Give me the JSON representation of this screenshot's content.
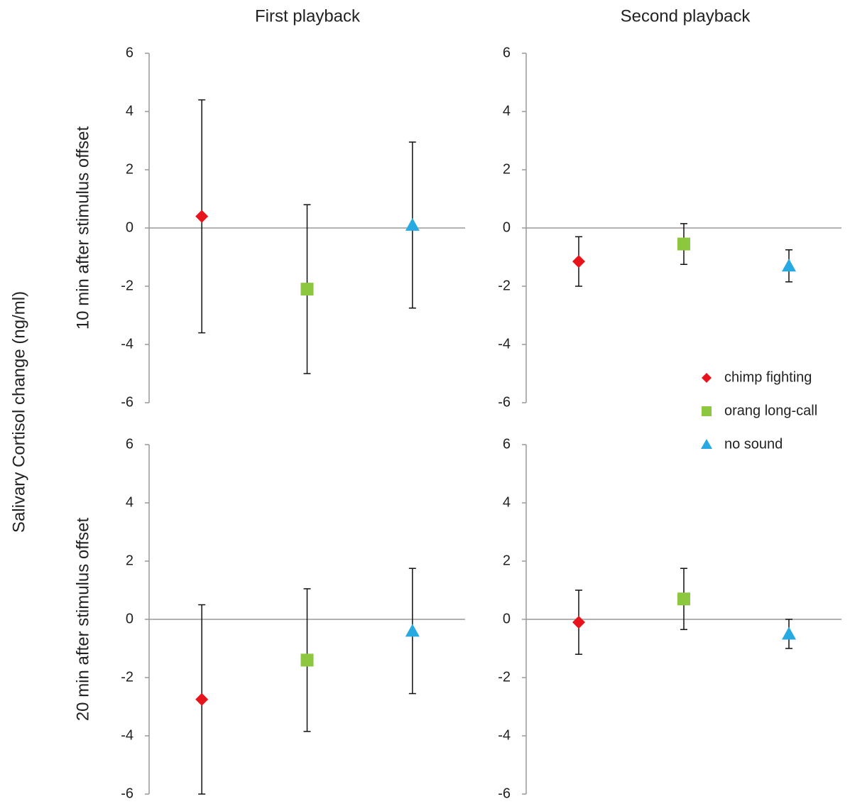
{
  "column_titles": [
    "First playback",
    "Second playback"
  ],
  "row_titles": [
    "10 min after stimulus offset",
    "20 min after stimulus offset"
  ],
  "ylabel": "Salivary Cortisol change (ng/ml)",
  "chart_data": [
    {
      "type": "errorbar",
      "ylim": [
        -6,
        6
      ],
      "yticks": [
        -6,
        -4,
        -2,
        0,
        2,
        4,
        6
      ],
      "zero_line": true,
      "series": [
        {
          "name": "chimp fighting",
          "color": "#e8141b",
          "marker": "diamond",
          "values": [
            0.4
          ],
          "errors": [
            4.0
          ]
        },
        {
          "name": "orang long-call",
          "color": "#8dc63f",
          "marker": "square",
          "values": [
            -2.1
          ],
          "errors": [
            2.9
          ]
        },
        {
          "name": "no sound",
          "color": "#27a9e1",
          "marker": "triangle",
          "values": [
            0.1
          ],
          "errors": [
            2.85
          ]
        }
      ]
    },
    {
      "type": "errorbar",
      "ylim": [
        -6,
        6
      ],
      "yticks": [
        -6,
        -4,
        -2,
        0,
        2,
        4,
        6
      ],
      "zero_line": true,
      "legend": true,
      "series": [
        {
          "name": "chimp fighting",
          "color": "#e8141b",
          "marker": "diamond",
          "values": [
            -1.15
          ],
          "errors": [
            0.85
          ]
        },
        {
          "name": "orang long-call",
          "color": "#8dc63f",
          "marker": "square",
          "values": [
            -0.55
          ],
          "errors": [
            0.7
          ]
        },
        {
          "name": "no sound",
          "color": "#27a9e1",
          "marker": "triangle",
          "values": [
            -1.3
          ],
          "errors": [
            0.55
          ]
        }
      ]
    },
    {
      "type": "errorbar",
      "ylim": [
        -6,
        6
      ],
      "yticks": [
        -6,
        -4,
        -2,
        0,
        2,
        4,
        6
      ],
      "zero_line": true,
      "series": [
        {
          "name": "chimp fighting",
          "color": "#e8141b",
          "marker": "diamond",
          "values": [
            -2.75
          ],
          "errors": [
            3.25
          ]
        },
        {
          "name": "orang long-call",
          "color": "#8dc63f",
          "marker": "square",
          "values": [
            -1.4
          ],
          "errors": [
            2.45
          ]
        },
        {
          "name": "no sound",
          "color": "#27a9e1",
          "marker": "triangle",
          "values": [
            -0.4
          ],
          "errors": [
            2.15
          ]
        }
      ]
    },
    {
      "type": "errorbar",
      "ylim": [
        -6,
        6
      ],
      "yticks": [
        -6,
        -4,
        -2,
        0,
        2,
        4,
        6
      ],
      "zero_line": true,
      "series": [
        {
          "name": "chimp fighting",
          "color": "#e8141b",
          "marker": "diamond",
          "values": [
            -0.1
          ],
          "errors": [
            1.1
          ]
        },
        {
          "name": "orang long-call",
          "color": "#8dc63f",
          "marker": "square",
          "values": [
            0.7
          ],
          "errors": [
            1.05
          ]
        },
        {
          "name": "no sound",
          "color": "#27a9e1",
          "marker": "triangle",
          "values": [
            -0.5
          ],
          "errors": [
            0.5
          ]
        }
      ]
    }
  ]
}
